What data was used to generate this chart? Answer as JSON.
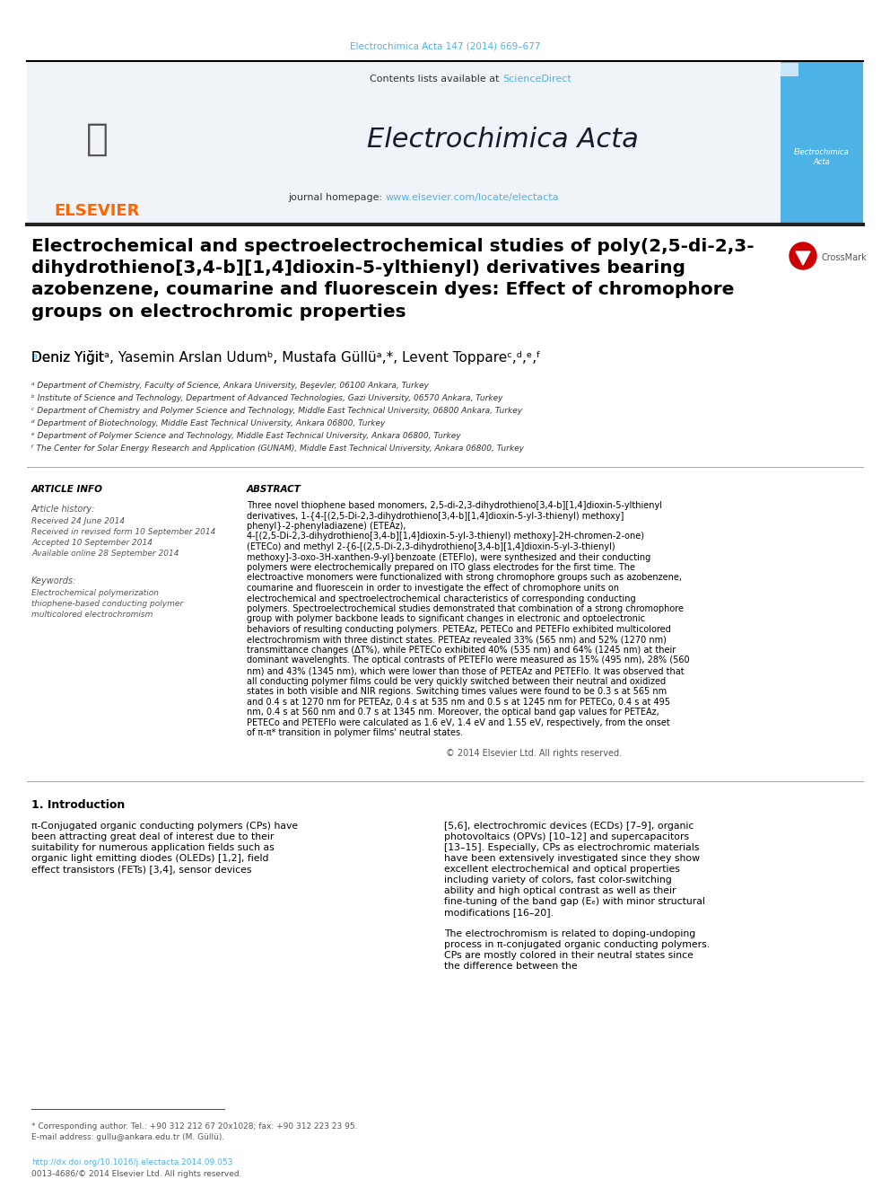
{
  "page_bg": "#ffffff",
  "header_citation": "Electrochimica Acta 147 (2014) 669–677",
  "header_citation_color": "#4db3e6",
  "journal_header_bg": "#f0f4f8",
  "journal_name": "Electrochimica Acta",
  "journal_name_color": "#1a1a2e",
  "contents_text": "Contents lists available at ",
  "sciencedirect_text": "ScienceDirect",
  "sciencedirect_color": "#4db3e6",
  "journal_homepage_text": "journal homepage: ",
  "journal_url": "www.elsevier.com/locate/electacta",
  "journal_url_color": "#4db3e6",
  "elsevier_color": "#FF6600",
  "paper_title": "Electrochemical and spectroelectrochemical studies of poly(2,5-di-2,3-\ndihydrothieno[3,4-b][1,4]dioxin-5-ylthienyl) derivatives bearing\nazobenzene, coumarine and fluorescein dyes: Effect of chromophore\ngroups on electrochromic properties",
  "paper_title_color": "#000000",
  "authors": "Deniz Yiğitᵃ, Yasemin Arslan Udumᵇ, Mustafa Güllüᵃ,*, Levent Toppareᶜ,ᵈ,ᵉ,ᶠ",
  "authors_color": "#000000",
  "affil_a": "ᵃ Department of Chemistry, Faculty of Science, Ankara University, Beşevler, 06100 Ankara, Turkey",
  "affil_b": "ᵇ Institute of Science and Technology, Department of Advanced Technologies, Gazi University, 06570 Ankara, Turkey",
  "affil_c": "ᶜ Department of Chemistry and Polymer Science and Technology, Middle East Technical University, 06800 Ankara, Turkey",
  "affil_d": "ᵈ Department of Biotechnology, Middle East Technical University, Ankara 06800, Turkey",
  "affil_e": "ᵉ Department of Polymer Science and Technology, Middle East Technical University, Ankara 06800, Turkey",
  "affil_f": "ᶠ The Center for Solar Energy Research and Application (GUNAM), Middle East Technical University, Ankara 06800, Turkey",
  "article_info_title": "ARTICLE INFO",
  "article_history_title": "Article history:",
  "received_text": "Received 24 June 2014",
  "received_revised": "Received in revised form 10 September 2014",
  "accepted": "Accepted 10 September 2014",
  "online": "Available online 28 September 2014",
  "keywords_title": "Keywords:",
  "keyword1": "Electrochemical polymerization",
  "keyword2": "thiophene-based conducting polymer",
  "keyword3": "multicolored electrochromism",
  "abstract_title": "ABSTRACT",
  "abstract_text": "Three novel thiophene based monomers, 2,5-di-2,3-dihydrothieno[3,4-b][1,4]dioxin-5-ylthienyl derivatives, 1-{4-[(2,5-Di-2,3-dihydrothieno[3,4-b][1,4]dioxin-5-yl-3-thienyl) methoxy] phenyl}-2-phenyladiazene) (ETEAz), 4-[(2,5-Di-2,3-dihydrothieno[3,4-b][1,4]dioxin-5-yl-3-thienyl) methoxy]-2H-chromen-2-one) (ETECo) and methyl 2-{6-[(2,5-Di-2,3-dihydrothieno[3,4-b][1,4]dioxin-5-yl-3-thienyl) methoxy]-3-oxo-3H-xanthen-9-yl}benzoate (ETEFlo), were synthesized and their conducting polymers were electrochemically prepared on ITO glass electrodes for the first time. The electroactive monomers were functionalized with strong chromophore groups such as azobenzene, coumarine and fluorescein in order to investigate the effect of chromophore units on electrochemical and spectroelectrochemical characteristics of corresponding conducting polymers. Spectroelectrochemical studies demonstrated that combination of a strong chromophore group with polymer backbone leads to significant changes in electronic and optoelectronic behaviors of resulting conducting polymers. PETEAz, PETECo and PETEFlo exhibited multicolored electrochromism with three distinct states. PETEAz revealed 33% (565 nm) and 52% (1270 nm) transmittance changes (ΔT%), while PETECo exhibited 40% (535 nm) and 64% (1245 nm) at their dominant wavelenghts. The optical contrasts of PETEFlo were measured as 15% (495 nm), 28% (560 nm) and 43% (1345 nm), which were lower than those of PETEAz and PETEFlo. It was observed that all conducting polymer films could be very quickly switched between their neutral and oxidized states in both visible and NIR regions. Switching times values were found to be 0.3 s at 565 nm and 0.4 s at 1270 nm for PETEAz, 0.4 s at 535 nm and 0.5 s at 1245 nm for PETECo, 0.4 s at 495 nm, 0.4 s at 560 nm and 0.7 s at 1345 nm. Moreover, the optical band gap values for PETEAz, PETECo and PETEFlo were calculated as 1.6 eV, 1.4 eV and 1.55 eV, respectively, from the onset of π-π* transition in polymer films' neutral states.",
  "copyright_text": "© 2014 Elsevier Ltd. All rights reserved.",
  "section1_title": "1. Introduction",
  "intro_col1": "π-Conjugated organic conducting polymers (CPs) have been attracting great deal of interest due to their suitability for numerous application fields such as organic light emitting diodes (OLEDs) [1,2], field effect transistors (FETs) [3,4], sensor devices",
  "intro_col2": "[5,6], electrochromic devices (ECDs) [7–9], organic photovoltaics (OPVs) [10–12] and supercapacitors [13–15]. Especially, CPs as electrochromic materials have been extensively investigated since they show excellent electrochemical and optical properties including variety of colors, fast color-switching ability and high optical contrast as well as their fine-tuning of the band gap (Eₑ) with minor structural modifications [16–20].\n\nThe electrochromism is related to doping-undoping process in π-conjugated organic conducting polymers. CPs are mostly colored in their neutral states since the difference between the",
  "footnote_star": "* Corresponding author. Tel.: +90 312 212 67 20x1028; fax: +90 312 223 23 95.",
  "footnote_email": "E-mail address: gullu@ankara.edu.tr (M. Güllü).",
  "doi_text": "http://dx.doi.org/10.1016/j.electacta.2014.09.053",
  "issn_text": "0013-4686/© 2014 Elsevier Ltd. All rights reserved."
}
